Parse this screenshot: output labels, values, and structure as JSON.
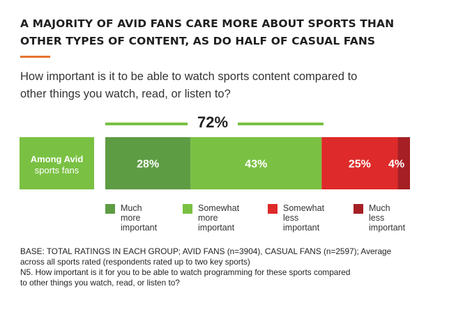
{
  "header": {
    "title_line1": "A MAJORITY OF AVID FANS CARE MORE ABOUT SPORTS THAN",
    "title_line2": "OTHER TYPES OF CONTENT, AS DO HALF OF CASUAL FANS",
    "subtitle_line1": "How important is it to be able to watch sports content compared to",
    "subtitle_line2": "other things you watch, read, or listen to?",
    "accent_color": "#e8732e"
  },
  "chart_data": {
    "type": "bar",
    "orientation": "horizontal",
    "stacked": true,
    "categories": [
      "Among Avid sports fans"
    ],
    "group_label_line1": "Among Avid",
    "group_label_line2": "sports fans",
    "bracket_label": "72%",
    "bracket_spans": [
      "Much more important",
      "Somewhat more important"
    ],
    "series": [
      {
        "name": "Much more important",
        "values": [
          28
        ],
        "label": "28%",
        "color": "#5e9c44",
        "legend_lines": [
          "Much",
          "more",
          "important"
        ]
      },
      {
        "name": "Somewhat more important",
        "values": [
          43
        ],
        "label": "43%",
        "color": "#7ac143",
        "legend_lines": [
          "Somewhat",
          "more",
          "important"
        ]
      },
      {
        "name": "Somewhat less important",
        "values": [
          25
        ],
        "label": "25%",
        "color": "#de2a2a",
        "legend_lines": [
          "Somewhat",
          "less",
          "important"
        ]
      },
      {
        "name": "Much less important",
        "values": [
          4
        ],
        "label": "4%",
        "color": "#a51f24",
        "legend_lines": [
          "Much",
          "less",
          "important"
        ]
      }
    ],
    "xlim": [
      0,
      100
    ],
    "legend_position": "bottom"
  },
  "footnote": {
    "line1": "BASE: TOTAL RATINGS IN EACH GROUP; AVID FANS (n=3904), CASUAL FANS (n=2597); Average",
    "line2": "across all sports rated (respondents rated up to two key sports)",
    "line3": "N5. How important is it for you to be able to watch programming for these sports compared",
    "line4": "to other things you watch, read, or listen to?"
  }
}
